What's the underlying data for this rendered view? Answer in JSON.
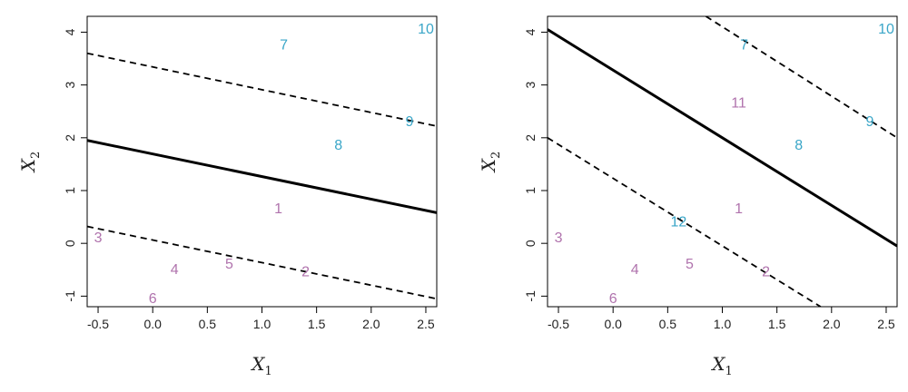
{
  "chart_data": [
    {
      "type": "scatter",
      "title": "",
      "xlabel": "X",
      "xlabel_sub": "1",
      "ylabel": "X",
      "ylabel_sub": "2",
      "xlim": [
        -0.6,
        2.6
      ],
      "ylim": [
        -1.2,
        4.3
      ],
      "xticks": [
        -0.5,
        0.0,
        0.5,
        1.0,
        1.5,
        2.0,
        2.5
      ],
      "xtick_labels": [
        "-0.5",
        "0.0",
        "0.5",
        "1.0",
        "1.5",
        "2.0",
        "2.5"
      ],
      "yticks": [
        -1,
        0,
        1,
        2,
        3,
        4
      ],
      "ytick_labels": [
        "-1",
        "0",
        "1",
        "2",
        "3",
        "4"
      ],
      "grid": false,
      "class_colors": {
        "blue": "#3aa6c8",
        "purple": "#b073ad"
      },
      "points": [
        {
          "label": "1",
          "x": 1.15,
          "y": 0.65,
          "class": "purple"
        },
        {
          "label": "2",
          "x": 1.4,
          "y": -0.55,
          "class": "purple"
        },
        {
          "label": "3",
          "x": -0.5,
          "y": 0.1,
          "class": "purple"
        },
        {
          "label": "4",
          "x": 0.2,
          "y": -0.5,
          "class": "purple"
        },
        {
          "label": "5",
          "x": 0.7,
          "y": -0.4,
          "class": "purple"
        },
        {
          "label": "6",
          "x": 0.0,
          "y": -1.05,
          "class": "purple"
        },
        {
          "label": "7",
          "x": 1.2,
          "y": 3.75,
          "class": "blue"
        },
        {
          "label": "8",
          "x": 1.7,
          "y": 1.85,
          "class": "blue"
        },
        {
          "label": "9",
          "x": 2.35,
          "y": 2.3,
          "class": "blue"
        },
        {
          "label": "10",
          "x": 2.5,
          "y": 4.05,
          "class": "blue"
        }
      ],
      "lines": [
        {
          "style": "solid",
          "x": [
            -0.6,
            2.6
          ],
          "y": [
            1.95,
            0.58
          ]
        },
        {
          "style": "dashed",
          "x": [
            -0.6,
            2.6
          ],
          "y": [
            3.6,
            2.22
          ]
        },
        {
          "style": "dashed",
          "x": [
            -0.6,
            2.6
          ],
          "y": [
            0.32,
            -1.05
          ]
        }
      ]
    },
    {
      "type": "scatter",
      "title": "",
      "xlabel": "X",
      "xlabel_sub": "1",
      "ylabel": "X",
      "ylabel_sub": "2",
      "xlim": [
        -0.6,
        2.6
      ],
      "ylim": [
        -1.2,
        4.3
      ],
      "xticks": [
        -0.5,
        0.0,
        0.5,
        1.0,
        1.5,
        2.0,
        2.5
      ],
      "xtick_labels": [
        "-0.5",
        "0.0",
        "0.5",
        "1.0",
        "1.5",
        "2.0",
        "2.5"
      ],
      "yticks": [
        -1,
        0,
        1,
        2,
        3,
        4
      ],
      "ytick_labels": [
        "-1",
        "0",
        "1",
        "2",
        "3",
        "4"
      ],
      "grid": false,
      "class_colors": {
        "blue": "#3aa6c8",
        "purple": "#b073ad"
      },
      "points": [
        {
          "label": "1",
          "x": 1.15,
          "y": 0.65,
          "class": "purple"
        },
        {
          "label": "2",
          "x": 1.4,
          "y": -0.55,
          "class": "purple"
        },
        {
          "label": "3",
          "x": -0.5,
          "y": 0.1,
          "class": "purple"
        },
        {
          "label": "4",
          "x": 0.2,
          "y": -0.5,
          "class": "purple"
        },
        {
          "label": "5",
          "x": 0.7,
          "y": -0.4,
          "class": "purple"
        },
        {
          "label": "6",
          "x": 0.0,
          "y": -1.05,
          "class": "purple"
        },
        {
          "label": "7",
          "x": 1.2,
          "y": 3.75,
          "class": "blue"
        },
        {
          "label": "8",
          "x": 1.7,
          "y": 1.85,
          "class": "blue"
        },
        {
          "label": "9",
          "x": 2.35,
          "y": 2.3,
          "class": "blue"
        },
        {
          "label": "10",
          "x": 2.5,
          "y": 4.05,
          "class": "blue"
        },
        {
          "label": "11",
          "x": 1.15,
          "y": 2.65,
          "class": "purple"
        },
        {
          "label": "12",
          "x": 0.6,
          "y": 0.4,
          "class": "blue"
        }
      ],
      "lines": [
        {
          "style": "solid",
          "x": [
            -0.6,
            2.6
          ],
          "y": [
            4.05,
            -0.05
          ]
        },
        {
          "style": "dashed",
          "x": [
            -0.6,
            1.9
          ],
          "y": [
            2.0,
            -1.2
          ]
        },
        {
          "style": "dashed",
          "x": [
            0.85,
            2.6
          ],
          "y": [
            4.3,
            2.0
          ]
        }
      ]
    }
  ]
}
